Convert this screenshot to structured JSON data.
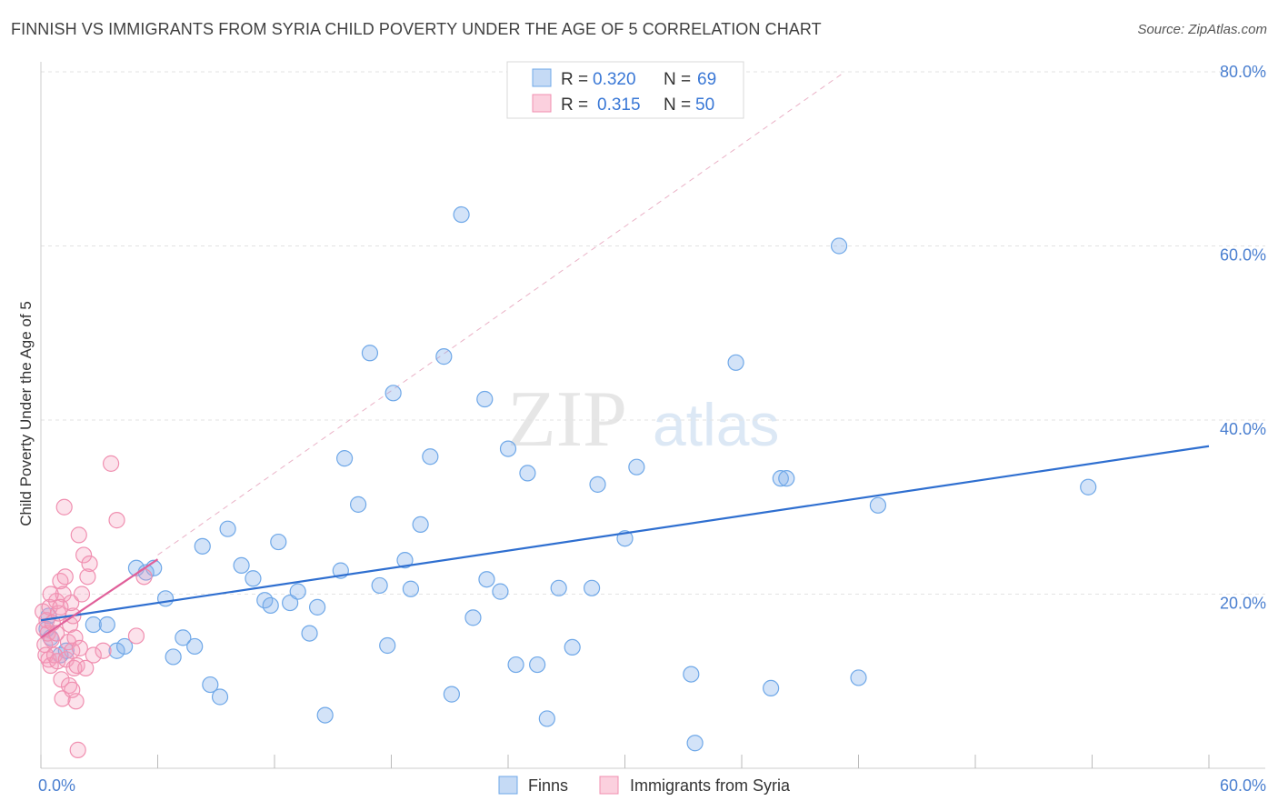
{
  "title": "FINNISH VS IMMIGRANTS FROM SYRIA CHILD POVERTY UNDER THE AGE OF 5 CORRELATION CHART",
  "source": "Source: ZipAtlas.com",
  "watermark": {
    "zip": "ZIP",
    "atlas": "atlas"
  },
  "colors": {
    "finns": "#6fa8e8",
    "finns_line": "#2f6fd0",
    "syria": "#f08fb0",
    "syria_line": "#e0609a",
    "axis_text": "#4a7fd0"
  },
  "chart_data": {
    "type": "scatter",
    "title": "FINNISH VS IMMIGRANTS FROM SYRIA CHILD POVERTY UNDER THE AGE OF 5 CORRELATION CHART",
    "xlabel": "",
    "ylabel": "Child Poverty Under the Age of 5",
    "xlim": [
      0,
      60
    ],
    "ylim": [
      0,
      80
    ],
    "x_tick_labels": [
      "0.0%",
      "60.0%"
    ],
    "y_ticks": [
      20,
      40,
      60,
      80
    ],
    "y_tick_labels": [
      "20.0%",
      "40.0%",
      "60.0%",
      "80.0%"
    ],
    "grid": true,
    "legend_position": "top-center",
    "stats": [
      {
        "r_label": "R =",
        "r_value": "0.320",
        "n_label": "N =",
        "n_value": "69"
      },
      {
        "r_label": "R =",
        "r_value": "0.315",
        "n_label": "N =",
        "n_value": "50"
      }
    ],
    "series": [
      {
        "name": "Finns",
        "trend": {
          "x": [
            0,
            60
          ],
          "y": [
            17.0,
            37.0
          ]
        },
        "points": [
          [
            0.3,
            16.0
          ],
          [
            0.4,
            17.5
          ],
          [
            0.5,
            15.0
          ],
          [
            1.0,
            13.0
          ],
          [
            1.3,
            13.5
          ],
          [
            2.7,
            16.5
          ],
          [
            3.4,
            16.5
          ],
          [
            3.9,
            13.5
          ],
          [
            4.3,
            14.0
          ],
          [
            4.9,
            23.0
          ],
          [
            5.4,
            22.5
          ],
          [
            5.8,
            23.0
          ],
          [
            6.4,
            19.5
          ],
          [
            6.8,
            12.8
          ],
          [
            7.3,
            15.0
          ],
          [
            7.9,
            14.0
          ],
          [
            8.3,
            25.5
          ],
          [
            8.7,
            9.6
          ],
          [
            9.2,
            8.2
          ],
          [
            9.6,
            27.5
          ],
          [
            10.3,
            23.3
          ],
          [
            10.9,
            21.8
          ],
          [
            11.5,
            19.3
          ],
          [
            11.8,
            18.7
          ],
          [
            12.2,
            26.0
          ],
          [
            12.8,
            19.0
          ],
          [
            13.2,
            20.3
          ],
          [
            13.8,
            15.5
          ],
          [
            14.2,
            18.5
          ],
          [
            14.6,
            6.1
          ],
          [
            15.4,
            22.7
          ],
          [
            15.6,
            35.6
          ],
          [
            16.3,
            30.3
          ],
          [
            16.9,
            47.7
          ],
          [
            17.4,
            21.0
          ],
          [
            17.8,
            14.1
          ],
          [
            18.1,
            43.1
          ],
          [
            18.7,
            23.9
          ],
          [
            19.0,
            20.6
          ],
          [
            19.5,
            28.0
          ],
          [
            20.0,
            35.8
          ],
          [
            20.7,
            47.3
          ],
          [
            21.1,
            8.5
          ],
          [
            21.6,
            63.6
          ],
          [
            22.2,
            17.3
          ],
          [
            22.8,
            42.4
          ],
          [
            22.9,
            21.7
          ],
          [
            23.6,
            20.3
          ],
          [
            24.0,
            36.7
          ],
          [
            24.4,
            11.9
          ],
          [
            25.0,
            33.9
          ],
          [
            25.5,
            11.9
          ],
          [
            26.0,
            5.7
          ],
          [
            26.6,
            20.7
          ],
          [
            27.3,
            13.9
          ],
          [
            28.3,
            20.7
          ],
          [
            28.6,
            32.6
          ],
          [
            30.0,
            26.4
          ],
          [
            30.6,
            34.6
          ],
          [
            33.4,
            10.8
          ],
          [
            33.6,
            2.9
          ],
          [
            35.7,
            46.6
          ],
          [
            37.5,
            9.2
          ],
          [
            38.0,
            33.3
          ],
          [
            38.3,
            33.3
          ],
          [
            41.0,
            60.0
          ],
          [
            42.0,
            10.4
          ],
          [
            43.0,
            30.2
          ],
          [
            53.8,
            32.3
          ]
        ]
      },
      {
        "name": "Immigrants from Syria",
        "trend": {
          "x": [
            0,
            6
          ],
          "y": [
            15.0,
            24.0
          ]
        },
        "points": [
          [
            0.1,
            18.0
          ],
          [
            0.15,
            16.0
          ],
          [
            0.2,
            14.2
          ],
          [
            0.25,
            13.0
          ],
          [
            0.3,
            17.0
          ],
          [
            0.35,
            15.5
          ],
          [
            0.4,
            12.5
          ],
          [
            0.45,
            18.5
          ],
          [
            0.5,
            11.8
          ],
          [
            0.55,
            14.8
          ],
          [
            0.6,
            16.7
          ],
          [
            0.7,
            13.0
          ],
          [
            0.8,
            19.2
          ],
          [
            0.85,
            12.3
          ],
          [
            0.9,
            17.8
          ],
          [
            1.0,
            21.5
          ],
          [
            1.05,
            10.2
          ],
          [
            1.1,
            8.0
          ],
          [
            1.15,
            20.0
          ],
          [
            1.2,
            30.0
          ],
          [
            1.25,
            22.0
          ],
          [
            1.3,
            12.5
          ],
          [
            1.4,
            14.5
          ],
          [
            1.45,
            9.5
          ],
          [
            1.5,
            16.5
          ],
          [
            1.55,
            19.0
          ],
          [
            1.6,
            13.5
          ],
          [
            1.65,
            17.5
          ],
          [
            1.7,
            11.5
          ],
          [
            1.75,
            15.0
          ],
          [
            1.8,
            7.7
          ],
          [
            1.85,
            11.8
          ],
          [
            1.9,
            2.1
          ],
          [
            1.95,
            26.8
          ],
          [
            2.0,
            13.8
          ],
          [
            2.1,
            20.0
          ],
          [
            2.2,
            24.5
          ],
          [
            2.3,
            11.5
          ],
          [
            2.4,
            22.0
          ],
          [
            2.5,
            23.5
          ],
          [
            2.7,
            13.0
          ],
          [
            3.2,
            13.5
          ],
          [
            3.6,
            35.0
          ],
          [
            3.9,
            28.5
          ],
          [
            4.9,
            15.2
          ],
          [
            5.3,
            22.0
          ],
          [
            0.5,
            20.0
          ],
          [
            1.0,
            18.5
          ],
          [
            0.8,
            15.5
          ],
          [
            1.6,
            9.0
          ]
        ]
      }
    ]
  },
  "legend": [
    {
      "label": "Finns"
    },
    {
      "label": "Immigrants from Syria"
    }
  ]
}
